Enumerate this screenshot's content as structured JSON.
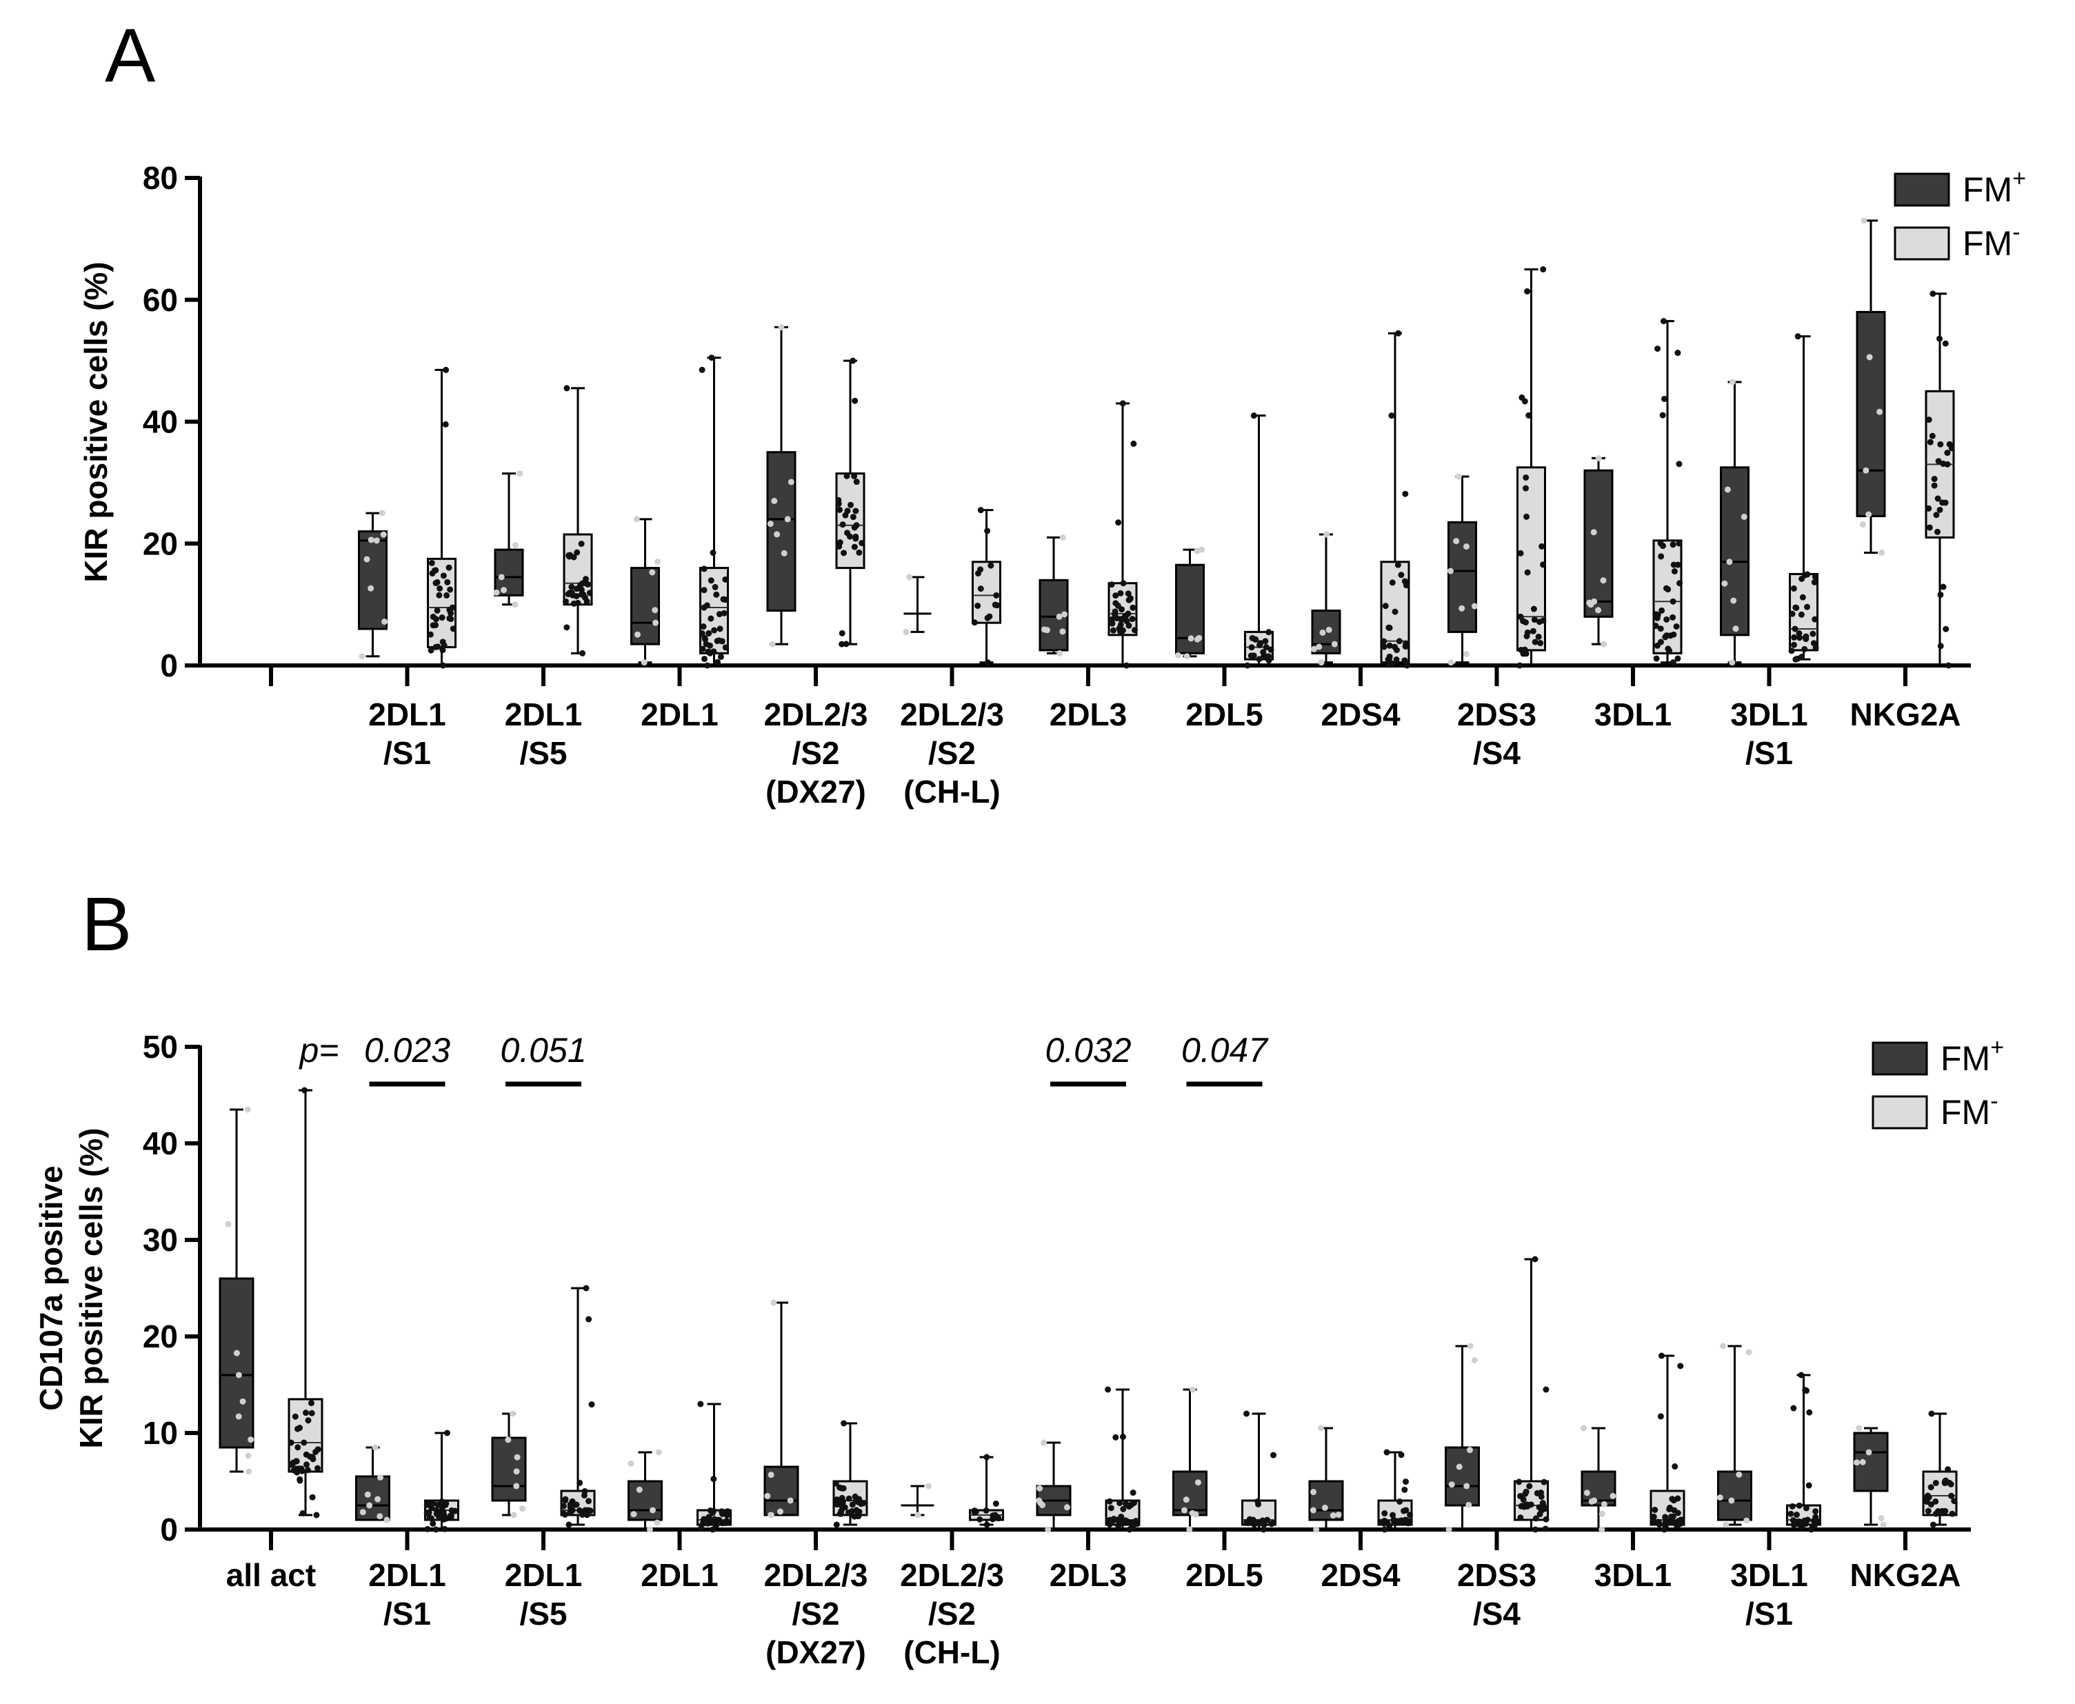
{
  "colors": {
    "fm_plus": "#3b3b3b",
    "fm_minus": "#dcdcdc",
    "axis": "#000000",
    "dot_on_dark": "#d0d0d0",
    "dot_on_light": "#111111"
  },
  "chart_data": [
    {
      "panel_label": "A",
      "type": "box",
      "title": "",
      "xlabel": "",
      "ylabel": "KIR positive cells (%)",
      "ylim": [
        0,
        80
      ],
      "yticks": [
        "0",
        "20",
        "40",
        "60",
        "80"
      ],
      "legend": {
        "position": "top-right",
        "entries": [
          {
            "base": "FM",
            "sup": "+"
          },
          {
            "base": "FM",
            "sup": "-"
          }
        ]
      },
      "categories": [
        {
          "lines": [
            ""
          ]
        },
        {
          "lines": [
            "2DL1",
            "/S1"
          ]
        },
        {
          "lines": [
            "2DL1",
            "/S5"
          ]
        },
        {
          "lines": [
            "2DL1"
          ]
        },
        {
          "lines": [
            "2DL2/3",
            "/S2",
            "(DX27)"
          ]
        },
        {
          "lines": [
            "2DL2/3",
            "/S2",
            "(CH-L)"
          ]
        },
        {
          "lines": [
            "2DL3"
          ]
        },
        {
          "lines": [
            "2DL5"
          ]
        },
        {
          "lines": [
            "2DS4"
          ]
        },
        {
          "lines": [
            "2DS3",
            "/S4"
          ]
        },
        {
          "lines": [
            "3DL1"
          ]
        },
        {
          "lines": [
            "3DL1",
            "/S1"
          ]
        },
        {
          "lines": [
            "NKG2A"
          ]
        }
      ],
      "series": [
        {
          "name": "FM+",
          "boxes": [
            null,
            {
              "min": 1.5,
              "q1": 6.0,
              "median": 20.5,
              "q3": 22.0,
              "max": 25.0,
              "n": 8
            },
            {
              "min": 10.0,
              "q1": 11.5,
              "median": 14.5,
              "q3": 19.0,
              "max": 31.5,
              "n": 6
            },
            {
              "min": 0.5,
              "q1": 3.5,
              "median": 7.0,
              "q3": 16.0,
              "max": 24.0,
              "n": 7
            },
            {
              "min": 3.5,
              "q1": 9.0,
              "median": 24.0,
              "q3": 35.0,
              "max": 55.5,
              "n": 8
            },
            {
              "min": 5.5,
              "q1": 8.5,
              "median": 8.5,
              "q3": 8.5,
              "max": 14.5,
              "n": 2
            },
            {
              "min": 2.0,
              "q1": 2.5,
              "median": 8.0,
              "q3": 14.0,
              "max": 21.0,
              "n": 7
            },
            {
              "min": 1.5,
              "q1": 2.0,
              "median": 4.5,
              "q3": 16.5,
              "max": 19.0,
              "n": 7
            },
            {
              "min": 0.5,
              "q1": 2.0,
              "median": 3.5,
              "q3": 9.0,
              "max": 21.5,
              "n": 7
            },
            {
              "min": 0.5,
              "q1": 5.5,
              "median": 15.5,
              "q3": 23.5,
              "max": 31.0,
              "n": 8
            },
            {
              "min": 3.5,
              "q1": 8.0,
              "median": 10.5,
              "q3": 32.0,
              "max": 34.0,
              "n": 8
            },
            {
              "min": 0.5,
              "q1": 5.0,
              "median": 17.0,
              "q3": 32.5,
              "max": 46.5,
              "n": 8
            },
            {
              "min": 18.5,
              "q1": 24.5,
              "median": 32.0,
              "q3": 58.0,
              "max": 73.0,
              "n": 7
            }
          ]
        },
        {
          "name": "FM-",
          "boxes": [
            null,
            {
              "min": 0.0,
              "q1": 3.0,
              "median": 9.5,
              "q3": 17.5,
              "max": 48.5,
              "n": 35
            },
            {
              "min": 2.0,
              "q1": 10.0,
              "median": 13.5,
              "q3": 21.5,
              "max": 45.5,
              "n": 30
            },
            {
              "min": 0.0,
              "q1": 2.0,
              "median": 9.5,
              "q3": 16.0,
              "max": 50.5,
              "n": 38
            },
            {
              "min": 3.5,
              "q1": 16.0,
              "median": 23.0,
              "q3": 31.5,
              "max": 50.0,
              "n": 30
            },
            {
              "min": 0.5,
              "q1": 7.0,
              "median": 11.5,
              "q3": 17.0,
              "max": 25.5,
              "n": 14
            },
            {
              "min": 0.0,
              "q1": 5.0,
              "median": 8.5,
              "q3": 13.5,
              "max": 43.0,
              "n": 38
            },
            {
              "min": 0.0,
              "q1": 1.0,
              "median": 3.0,
              "q3": 5.5,
              "max": 41.0,
              "n": 20
            },
            {
              "min": 0.0,
              "q1": 0.5,
              "median": 4.0,
              "q3": 17.0,
              "max": 54.5,
              "n": 30
            },
            {
              "min": 0.0,
              "q1": 2.5,
              "median": 8.0,
              "q3": 32.5,
              "max": 65.0,
              "n": 30
            },
            {
              "min": 0.5,
              "q1": 2.0,
              "median": 10.5,
              "q3": 20.5,
              "max": 56.5,
              "n": 38
            },
            {
              "min": 1.0,
              "q1": 2.5,
              "median": 6.0,
              "q3": 15.0,
              "max": 54.0,
              "n": 30
            },
            {
              "min": 0.0,
              "q1": 21.0,
              "median": 33.0,
              "q3": 45.0,
              "max": 61.0,
              "n": 28
            }
          ]
        }
      ],
      "annotations": []
    },
    {
      "panel_label": "B",
      "type": "box",
      "title": "",
      "xlabel": "",
      "ylabel_lines": [
        "CD107a positive",
        "KIR positive cells (%)"
      ],
      "ylim": [
        0,
        50
      ],
      "yticks": [
        "0",
        "10",
        "20",
        "30",
        "40",
        "50"
      ],
      "legend": {
        "position": "top-right",
        "entries": [
          {
            "base": "FM",
            "sup": "+"
          },
          {
            "base": "FM",
            "sup": "-"
          }
        ]
      },
      "categories": [
        {
          "lines": [
            "all act"
          ]
        },
        {
          "lines": [
            "2DL1",
            "/S1"
          ]
        },
        {
          "lines": [
            "2DL1",
            "/S5"
          ]
        },
        {
          "lines": [
            "2DL1"
          ]
        },
        {
          "lines": [
            "2DL2/3",
            "/S2",
            "(DX27)"
          ]
        },
        {
          "lines": [
            "2DL2/3",
            "/S2",
            "(CH-L)"
          ]
        },
        {
          "lines": [
            "2DL3"
          ]
        },
        {
          "lines": [
            "2DL5"
          ]
        },
        {
          "lines": [
            "2DS4"
          ]
        },
        {
          "lines": [
            "2DS3",
            "/S4"
          ]
        },
        {
          "lines": [
            "3DL1"
          ]
        },
        {
          "lines": [
            "3DL1",
            "/S1"
          ]
        },
        {
          "lines": [
            "NKG2A"
          ]
        }
      ],
      "series": [
        {
          "name": "FM+",
          "boxes": [
            {
              "min": 6.0,
              "q1": 8.5,
              "median": 16.0,
              "q3": 26.0,
              "max": 43.5,
              "n": 9
            },
            {
              "min": 1.0,
              "q1": 1.0,
              "median": 2.5,
              "q3": 5.5,
              "max": 8.5,
              "n": 8
            },
            {
              "min": 1.5,
              "q1": 3.0,
              "median": 4.5,
              "q3": 9.5,
              "max": 12.0,
              "n": 7
            },
            {
              "min": 0.0,
              "q1": 1.0,
              "median": 2.0,
              "q3": 5.0,
              "max": 8.0,
              "n": 7
            },
            {
              "min": 1.5,
              "q1": 1.5,
              "median": 3.0,
              "q3": 6.5,
              "max": 23.5,
              "n": 7
            },
            {
              "min": 1.5,
              "q1": 2.5,
              "median": 2.5,
              "q3": 2.5,
              "max": 4.5,
              "n": 2
            },
            {
              "min": 0.0,
              "q1": 1.5,
              "median": 3.0,
              "q3": 4.5,
              "max": 9.0,
              "n": 7
            },
            {
              "min": 0.0,
              "q1": 1.5,
              "median": 2.0,
              "q3": 6.0,
              "max": 14.5,
              "n": 7
            },
            {
              "min": 0.0,
              "q1": 1.0,
              "median": 2.0,
              "q3": 5.0,
              "max": 10.5,
              "n": 7
            },
            {
              "min": 0.0,
              "q1": 2.5,
              "median": 4.5,
              "q3": 8.5,
              "max": 19.0,
              "n": 8
            },
            {
              "min": 0.0,
              "q1": 2.5,
              "median": 3.0,
              "q3": 6.0,
              "max": 10.5,
              "n": 8
            },
            {
              "min": 0.5,
              "q1": 1.0,
              "median": 3.0,
              "q3": 6.0,
              "max": 19.0,
              "n": 7
            },
            {
              "min": 0.5,
              "q1": 4.0,
              "median": 8.0,
              "q3": 10.0,
              "max": 10.5,
              "n": 6
            }
          ]
        },
        {
          "name": "FM-",
          "boxes": [
            {
              "min": 1.5,
              "q1": 6.0,
              "median": 9.0,
              "q3": 13.5,
              "max": 45.5,
              "n": 35
            },
            {
              "min": 0.0,
              "q1": 1.0,
              "median": 2.0,
              "q3": 3.0,
              "max": 10.0,
              "n": 38
            },
            {
              "min": 0.5,
              "q1": 1.5,
              "median": 2.0,
              "q3": 4.0,
              "max": 25.0,
              "n": 30
            },
            {
              "min": 0.0,
              "q1": 0.5,
              "median": 1.0,
              "q3": 2.0,
              "max": 13.0,
              "n": 35
            },
            {
              "min": 0.5,
              "q1": 1.5,
              "median": 3.0,
              "q3": 5.0,
              "max": 11.0,
              "n": 35
            },
            {
              "min": 0.5,
              "q1": 1.0,
              "median": 1.5,
              "q3": 2.0,
              "max": 7.5,
              "n": 14
            },
            {
              "min": 0.0,
              "q1": 0.5,
              "median": 1.0,
              "q3": 3.0,
              "max": 14.5,
              "n": 38
            },
            {
              "min": 0.0,
              "q1": 0.5,
              "median": 1.0,
              "q3": 3.0,
              "max": 12.0,
              "n": 20
            },
            {
              "min": 0.0,
              "q1": 0.5,
              "median": 1.0,
              "q3": 3.0,
              "max": 8.0,
              "n": 30
            },
            {
              "min": 0.0,
              "q1": 1.0,
              "median": 2.5,
              "q3": 5.0,
              "max": 28.0,
              "n": 30
            },
            {
              "min": 0.0,
              "q1": 0.5,
              "median": 1.0,
              "q3": 4.0,
              "max": 18.0,
              "n": 38
            },
            {
              "min": 0.0,
              "q1": 0.5,
              "median": 1.0,
              "q3": 2.5,
              "max": 16.0,
              "n": 30
            },
            {
              "min": 0.5,
              "q1": 1.5,
              "median": 3.5,
              "q3": 6.0,
              "max": 12.0,
              "n": 26
            }
          ]
        }
      ],
      "annotations": [
        {
          "category": 0,
          "text": "p=",
          "bar": false
        },
        {
          "category": 1,
          "text": "0.023",
          "bar": true
        },
        {
          "category": 2,
          "text": "0.051",
          "bar": true
        },
        {
          "category": 6,
          "text": "0.032",
          "bar": true
        },
        {
          "category": 7,
          "text": "0.047",
          "bar": true
        }
      ]
    }
  ]
}
